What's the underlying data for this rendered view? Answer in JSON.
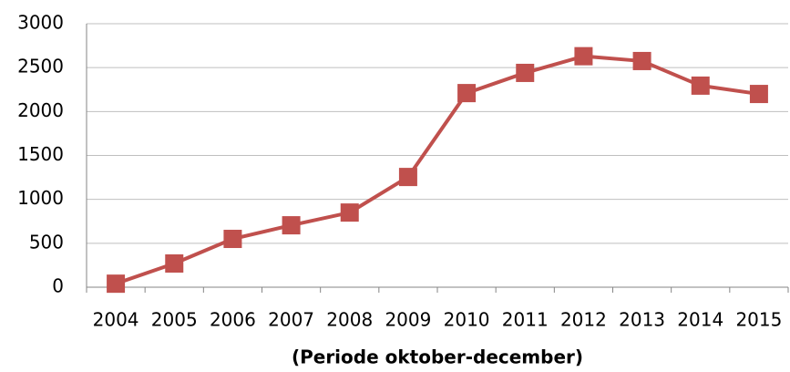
{
  "chart_data": {
    "type": "line",
    "x_label": "(Periode oktober-december)",
    "categories": [
      "2004",
      "2005",
      "2006",
      "2007",
      "2008",
      "2009",
      "2010",
      "2011",
      "2012",
      "2013",
      "2014",
      "2015"
    ],
    "series": [
      {
        "color": "#c0504d",
        "values": [
          40,
          270,
          550,
          705,
          850,
          1255,
          2210,
          2440,
          2630,
          2575,
          2295,
          2200
        ]
      }
    ],
    "ylim": [
      0,
      3000
    ],
    "yticks": [
      0,
      500,
      1000,
      1500,
      2000,
      2500,
      3000
    ],
    "grid": true
  }
}
